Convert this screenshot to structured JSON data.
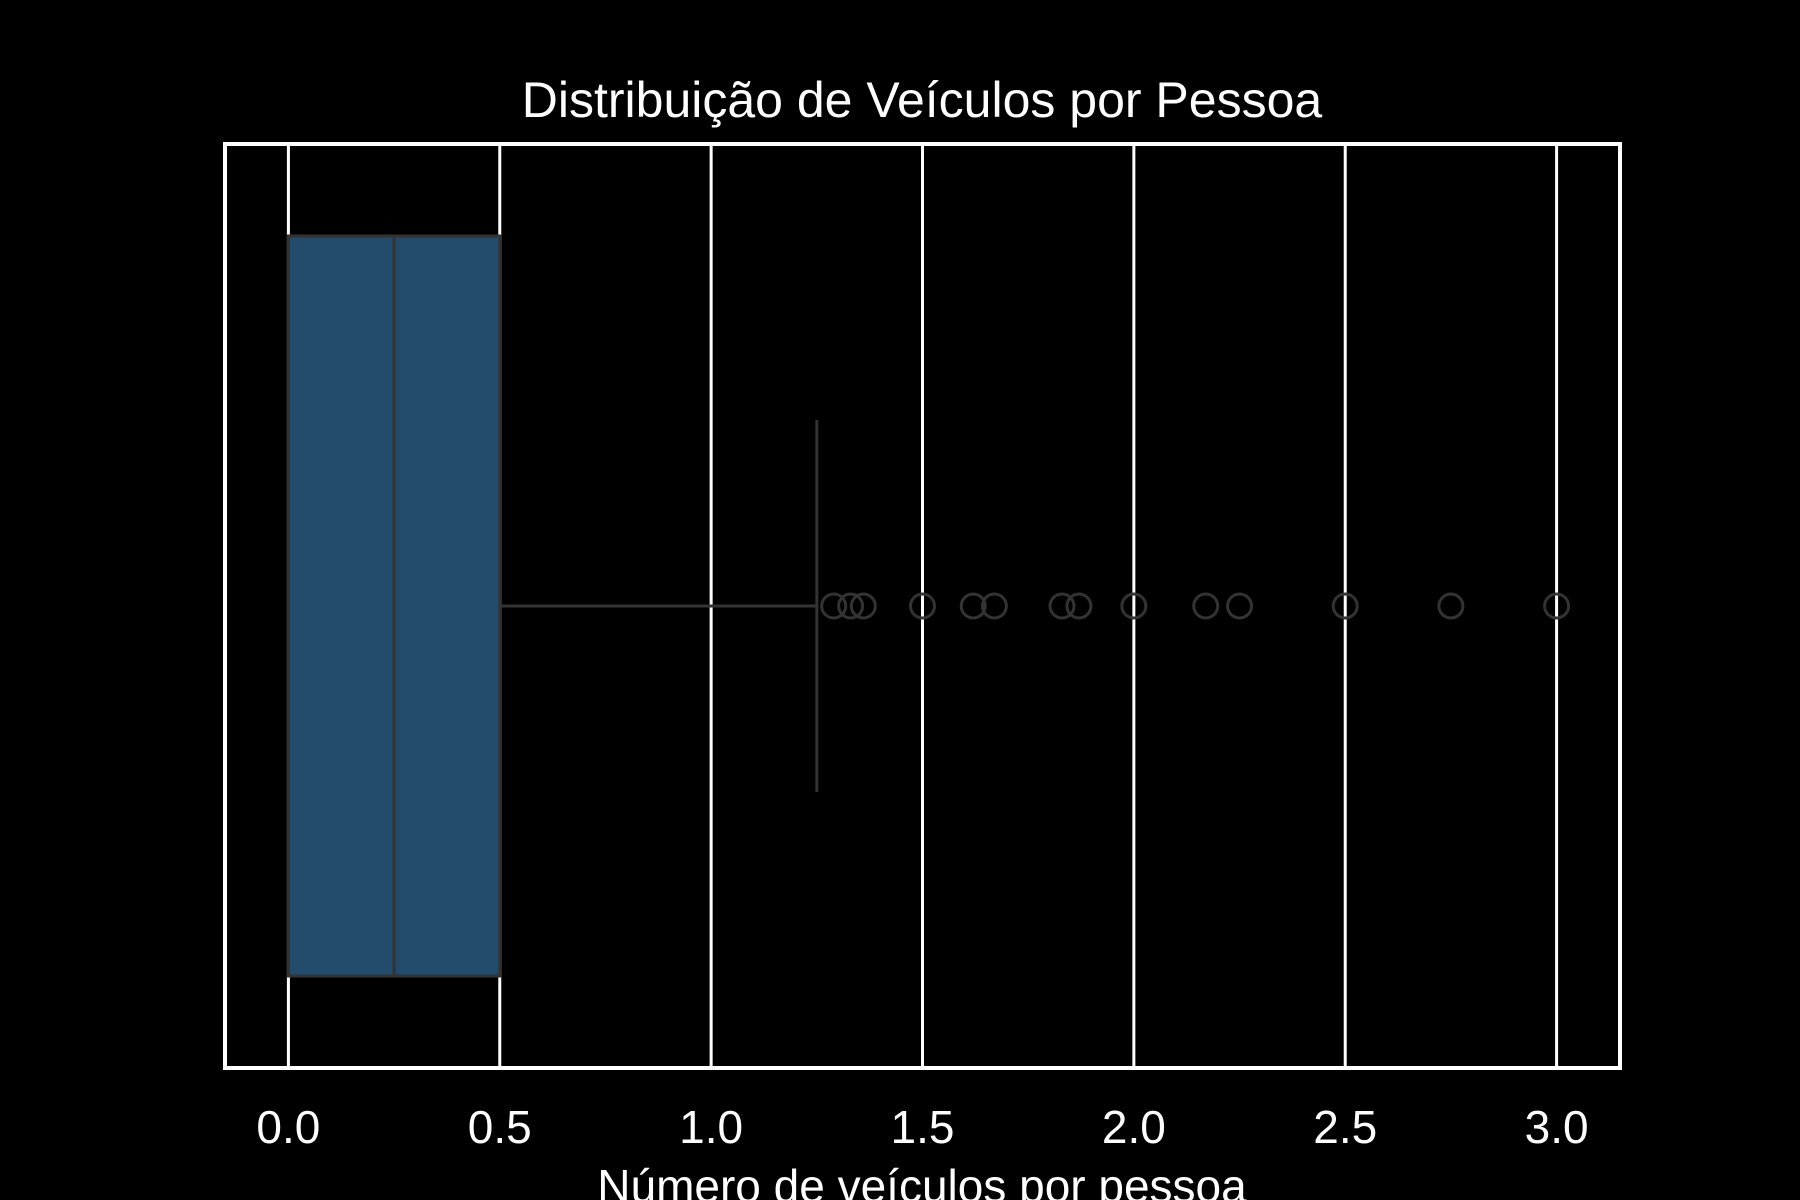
{
  "chart_data": {
    "type": "box",
    "orientation": "horizontal",
    "title": "Distribuição de Veículos por Pessoa",
    "xlabel": "Número de veículos por pessoa",
    "ylabel": "",
    "xlim": [
      -0.15,
      3.15
    ],
    "x_ticks": [
      0.0,
      0.5,
      1.0,
      1.5,
      2.0,
      2.5,
      3.0
    ],
    "x_tick_labels": [
      "0.0",
      "0.5",
      "1.0",
      "1.5",
      "2.0",
      "2.5",
      "3.0"
    ],
    "grid": true,
    "legend": "none",
    "box": {
      "whisker_low": 0.0,
      "q1": 0.0,
      "median": 0.25,
      "q3": 0.5,
      "whisker_high": 1.25
    },
    "outliers": [
      1.29,
      1.33,
      1.36,
      1.5,
      1.62,
      1.67,
      1.83,
      1.87,
      2.0,
      2.17,
      2.25,
      2.5,
      2.75,
      3.0
    ],
    "colors": {
      "background": "#000000",
      "frame": "#ffffff",
      "grid": "#ffffff",
      "box_fill": "#234b6b",
      "box_edge": "#333333",
      "median": "#333333",
      "whisker": "#333333",
      "outlier_edge": "#333333",
      "text": "#ffffff"
    }
  }
}
